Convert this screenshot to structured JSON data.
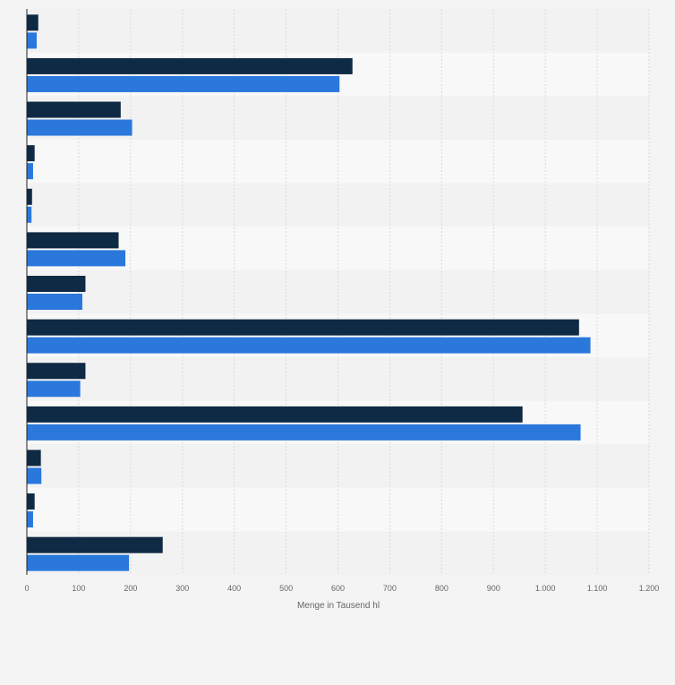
{
  "chart_data": {
    "type": "bar",
    "orientation": "horizontal",
    "xlabel": "Menge in Tausend hl",
    "xlim": [
      0,
      1200
    ],
    "xticks": [
      0,
      100,
      200,
      300,
      400,
      500,
      600,
      700,
      800,
      900,
      1000,
      1100,
      1200
    ],
    "xtick_labels": [
      "0",
      "100",
      "200",
      "300",
      "400",
      "500",
      "600",
      "700",
      "800",
      "900",
      "1.000",
      "1.100",
      "1.200"
    ],
    "grid": true,
    "categories": [
      "",
      "",
      "",
      "",
      "",
      "",
      "",
      "",
      "",
      "",
      "",
      "",
      ""
    ],
    "series": [
      {
        "color": "#0f2a44",
        "values": [
          22,
          628,
          181,
          15,
          10,
          177,
          113,
          1065,
          113,
          956,
          27,
          15,
          262
        ]
      },
      {
        "color": "#2a78dc",
        "values": [
          19,
          603,
          203,
          12,
          9,
          190,
          107,
          1087,
          103,
          1068,
          28,
          12,
          197
        ]
      }
    ]
  },
  "colors": {
    "band_odd": "#f2f2f2",
    "band_even": "#f8f8f8",
    "grid": "#d9d9d9",
    "tick_text": "#666666",
    "axis": "#222222"
  }
}
